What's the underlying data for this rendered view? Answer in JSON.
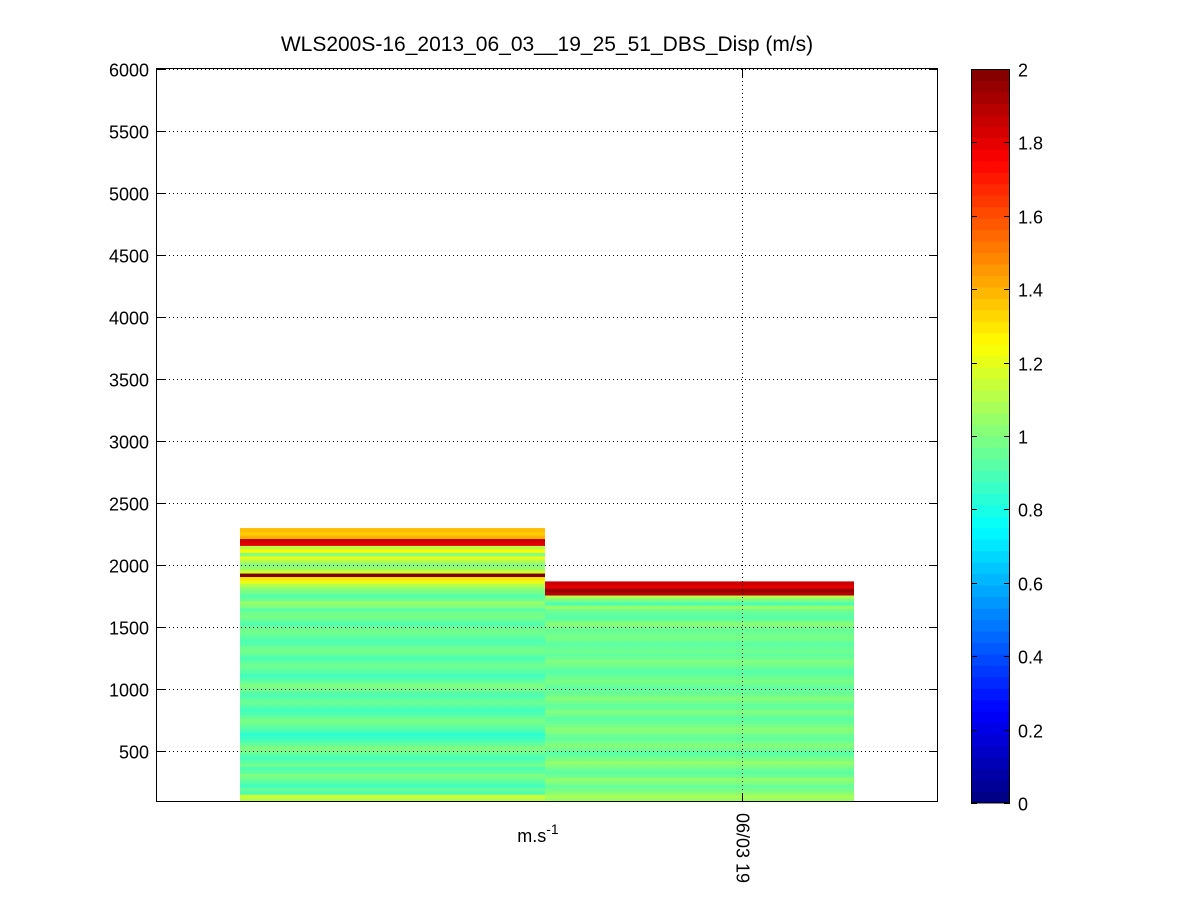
{
  "chart_data": {
    "type": "heatmap",
    "title": "WLS200S-16_2013_06_03__19_25_51_DBS_Disp (m/s)",
    "xlabel": "m.s-1",
    "ylabel": "",
    "x_tick_labels": [
      "06/03 19"
    ],
    "ylim": [
      100,
      6000
    ],
    "yticks": [
      500,
      1000,
      1500,
      2000,
      2500,
      3000,
      3500,
      4000,
      4500,
      5000,
      5500,
      6000
    ],
    "grid": true,
    "colorbar": {
      "colormap": "jet",
      "range": [
        0,
        2
      ],
      "ticks": [
        0,
        0.2,
        0.4,
        0.6,
        0.8,
        1,
        1.2,
        1.4,
        1.6,
        1.8,
        2
      ],
      "tick_labels": [
        "0",
        "0.2",
        "0.4",
        "0.6",
        "0.8",
        "1",
        "1.2",
        "1.4",
        "1.6",
        "1.8",
        "2"
      ]
    },
    "columns": [
      {
        "max_altitude": 2300,
        "values": [
          1.1,
          1.15,
          0.9,
          0.95,
          0.88,
          0.92,
          0.96,
          1.0,
          0.94,
          0.9,
          0.97,
          0.93,
          0.89,
          0.92,
          0.98,
          1.0,
          0.95,
          0.9,
          0.86,
          0.84,
          0.9,
          0.93,
          0.97,
          0.99,
          0.94,
          0.9,
          0.88,
          0.92,
          0.96,
          0.94,
          0.9,
          0.93,
          0.97,
          1.0,
          0.95,
          0.91,
          0.88,
          0.92,
          0.95,
          0.97,
          0.93,
          0.9,
          0.94,
          0.98,
          0.96,
          0.92,
          0.9,
          0.93,
          0.96,
          0.98,
          0.94,
          0.91,
          0.95,
          0.99,
          0.97,
          0.93,
          1.0,
          1.05,
          0.95,
          0.92,
          0.98,
          1.02,
          1.1,
          1.2,
          1.3,
          2.0,
          1.15,
          1.05,
          1.0,
          1.1,
          1.2,
          1.0,
          1.25,
          1.1,
          1.8,
          1.85,
          1.4,
          1.35,
          1.38
        ]
      },
      {
        "max_altitude": 1870,
        "values": [
          1.05,
          1.08,
          1.02,
          0.98,
          0.95,
          1.0,
          1.03,
          0.97,
          0.93,
          0.96,
          1.0,
          1.04,
          0.99,
          0.95,
          0.92,
          0.97,
          1.01,
          0.98,
          0.94,
          0.96,
          1.0,
          1.02,
          0.98,
          0.95,
          0.93,
          0.97,
          1.0,
          0.96,
          0.94,
          0.98,
          1.01,
          0.97,
          0.95,
          0.93,
          0.96,
          0.99,
          0.97,
          0.94,
          0.92,
          0.95,
          0.98,
          1.0,
          0.96,
          0.94,
          0.97,
          0.95,
          0.93,
          0.96,
          0.99,
          0.97,
          0.95,
          0.98,
          1.02,
          0.96,
          0.92,
          0.94,
          0.97,
          1.05,
          0.9,
          0.98,
          1.1,
          1.9,
          1.95,
          1.8,
          1.85
        ]
      }
    ]
  }
}
